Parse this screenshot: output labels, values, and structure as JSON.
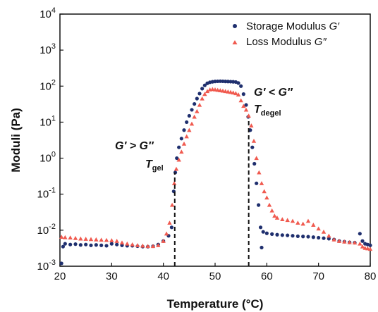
{
  "chart_data": {
    "type": "scatter",
    "xlabel": "Temperature (°C)",
    "ylabel": "Moduli (Pa)",
    "xlim": [
      20,
      80
    ],
    "ylim_log10": [
      -3,
      4
    ],
    "yscale": "log",
    "grid": false,
    "legend_position": "top-right",
    "x_ticks": [
      "20",
      "30",
      "40",
      "50",
      "60",
      "70",
      "80"
    ],
    "y_ticks": [
      {
        "base": "10",
        "exp": "-3"
      },
      {
        "base": "10",
        "exp": "-2"
      },
      {
        "base": "10",
        "exp": "-1"
      },
      {
        "base": "10",
        "exp": "0"
      },
      {
        "base": "10",
        "exp": "1"
      },
      {
        "base": "10",
        "exp": "2"
      },
      {
        "base": "10",
        "exp": "3"
      },
      {
        "base": "10",
        "exp": "4"
      }
    ],
    "series": [
      {
        "name": "Storage Modulus G′",
        "name_prefix": "Storage Modulus ",
        "name_symbol": "G′",
        "marker": "circle",
        "color": "#1f2f6e",
        "points": [
          [
            20.3,
            0.0012
          ],
          [
            20.6,
            0.0035
          ],
          [
            21,
            0.0042
          ],
          [
            22,
            0.004
          ],
          [
            23,
            0.0041
          ],
          [
            24,
            0.0039
          ],
          [
            25,
            0.004
          ],
          [
            26,
            0.0038
          ],
          [
            27,
            0.0039
          ],
          [
            28,
            0.0038
          ],
          [
            29,
            0.0037
          ],
          [
            30,
            0.0042
          ],
          [
            31,
            0.004
          ],
          [
            32,
            0.0038
          ],
          [
            33,
            0.0037
          ],
          [
            34,
            0.0037
          ],
          [
            35,
            0.0036
          ],
          [
            36,
            0.0035
          ],
          [
            37,
            0.0035
          ],
          [
            38,
            0.0036
          ],
          [
            39,
            0.004
          ],
          [
            40,
            0.005
          ],
          [
            41,
            0.007
          ],
          [
            41.6,
            0.012
          ],
          [
            42.0,
            0.12
          ],
          [
            42.3,
            0.4
          ],
          [
            42.6,
            1.0
          ],
          [
            43.0,
            2.0
          ],
          [
            43.5,
            3.5
          ],
          [
            44,
            6
          ],
          [
            44.5,
            10
          ],
          [
            45,
            15
          ],
          [
            45.5,
            22
          ],
          [
            46,
            32
          ],
          [
            46.5,
            45
          ],
          [
            47,
            62
          ],
          [
            47.5,
            85
          ],
          [
            48,
            105
          ],
          [
            48.5,
            120
          ],
          [
            49,
            128
          ],
          [
            49.5,
            132
          ],
          [
            50,
            135
          ],
          [
            50.5,
            136
          ],
          [
            51,
            137
          ],
          [
            51.5,
            136
          ],
          [
            52,
            135
          ],
          [
            52.5,
            134
          ],
          [
            53,
            133
          ],
          [
            53.5,
            132
          ],
          [
            54,
            130
          ],
          [
            54.5,
            122
          ],
          [
            55,
            100
          ],
          [
            55.5,
            60
          ],
          [
            56,
            30
          ],
          [
            56.4,
            14
          ],
          [
            56.8,
            6
          ],
          [
            57.2,
            2
          ],
          [
            57.6,
            0.7
          ],
          [
            58,
            0.2
          ],
          [
            58.4,
            0.05
          ],
          [
            58.8,
            0.012
          ],
          [
            59,
            0.0033
          ],
          [
            59.3,
            0.009
          ],
          [
            60,
            0.0082
          ],
          [
            61,
            0.0078
          ],
          [
            62,
            0.0075
          ],
          [
            63,
            0.0073
          ],
          [
            64,
            0.0072
          ],
          [
            65,
            0.007
          ],
          [
            66,
            0.0068
          ],
          [
            67,
            0.0067
          ],
          [
            68,
            0.0066
          ],
          [
            69,
            0.0064
          ],
          [
            70,
            0.0062
          ],
          [
            71,
            0.006
          ],
          [
            72,
            0.0058
          ],
          [
            73,
            0.0055
          ],
          [
            74,
            0.005
          ],
          [
            75,
            0.0048
          ],
          [
            76,
            0.0046
          ],
          [
            77,
            0.0045
          ],
          [
            78,
            0.008
          ],
          [
            78.5,
            0.005
          ],
          [
            79,
            0.0042
          ],
          [
            79.5,
            0.004
          ],
          [
            80,
            0.0038
          ]
        ]
      },
      {
        "name": "Loss Modulus G″",
        "name_prefix": "Loss Modulus ",
        "name_symbol": "G″",
        "marker": "triangle",
        "color": "#f05a4f",
        "points": [
          [
            20.3,
            0.0065
          ],
          [
            21,
            0.0063
          ],
          [
            22,
            0.0062
          ],
          [
            23,
            0.006
          ],
          [
            24,
            0.0058
          ],
          [
            25,
            0.0057
          ],
          [
            26,
            0.0056
          ],
          [
            27,
            0.0055
          ],
          [
            28,
            0.0054
          ],
          [
            29,
            0.0053
          ],
          [
            30,
            0.0052
          ],
          [
            31,
            0.005
          ],
          [
            32,
            0.0045
          ],
          [
            33,
            0.0042
          ],
          [
            34,
            0.004
          ],
          [
            35,
            0.0038
          ],
          [
            36,
            0.0037
          ],
          [
            37,
            0.0036
          ],
          [
            38,
            0.0036
          ],
          [
            39,
            0.0038
          ],
          [
            40,
            0.005
          ],
          [
            40.6,
            0.008
          ],
          [
            41.2,
            0.016
          ],
          [
            41.7,
            0.05
          ],
          [
            42.1,
            0.2
          ],
          [
            42.5,
            0.5
          ],
          [
            43,
            0.9
          ],
          [
            43.5,
            1.5
          ],
          [
            44,
            2.5
          ],
          [
            44.5,
            4
          ],
          [
            45,
            6
          ],
          [
            45.5,
            9
          ],
          [
            46,
            14
          ],
          [
            46.5,
            20
          ],
          [
            47,
            30
          ],
          [
            47.5,
            45
          ],
          [
            48,
            60
          ],
          [
            48.5,
            72
          ],
          [
            49,
            80
          ],
          [
            49.5,
            82
          ],
          [
            50,
            80
          ],
          [
            50.5,
            78
          ],
          [
            51,
            76
          ],
          [
            51.5,
            74
          ],
          [
            52,
            72
          ],
          [
            52.5,
            70
          ],
          [
            53,
            68
          ],
          [
            53.5,
            66
          ],
          [
            54,
            63
          ],
          [
            54.5,
            58
          ],
          [
            55,
            40
          ],
          [
            55.5,
            28
          ],
          [
            56,
            22
          ],
          [
            56.5,
            15
          ],
          [
            57,
            8
          ],
          [
            57.5,
            3
          ],
          [
            58,
            1.0
          ],
          [
            58.5,
            0.4
          ],
          [
            59,
            0.2
          ],
          [
            59.5,
            0.12
          ],
          [
            60,
            0.08
          ],
          [
            60.5,
            0.05
          ],
          [
            61,
            0.035
          ],
          [
            61.5,
            0.025
          ],
          [
            62,
            0.022
          ],
          [
            63,
            0.02
          ],
          [
            64,
            0.019
          ],
          [
            65,
            0.018
          ],
          [
            66,
            0.016
          ],
          [
            67,
            0.015
          ],
          [
            68,
            0.018
          ],
          [
            69,
            0.014
          ],
          [
            70,
            0.011
          ],
          [
            71,
            0.009
          ],
          [
            72,
            0.007
          ],
          [
            73,
            0.0055
          ],
          [
            74,
            0.005
          ],
          [
            75,
            0.0048
          ],
          [
            76,
            0.0046
          ],
          [
            77,
            0.0045
          ],
          [
            78,
            0.0042
          ],
          [
            78.5,
            0.0035
          ],
          [
            79,
            0.0032
          ],
          [
            79.5,
            0.0031
          ],
          [
            80,
            0.003
          ]
        ]
      }
    ],
    "annotations": [
      {
        "id": "gel",
        "x": 42.2,
        "y_from": 0.001,
        "y_to": 0.4,
        "line1_left": "G′ > G″",
        "line2_main": "T",
        "line2_sub": "gel"
      },
      {
        "id": "degel",
        "x": 56.5,
        "y_from": 0.001,
        "y_to": 12,
        "line1_left": "G′ < G″",
        "line2_main": "T",
        "line2_sub": "degel"
      }
    ]
  }
}
